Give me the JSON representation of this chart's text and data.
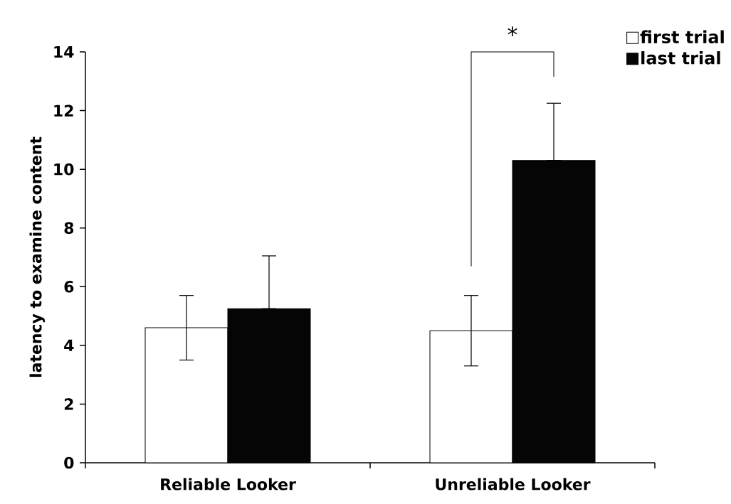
{
  "chart_data": {
    "type": "bar",
    "ylabel": "latency to examine content",
    "categories": [
      "Reliable Looker",
      "Unreliable Looker"
    ],
    "series": [
      {
        "name": "first trial",
        "color": "#ffffff",
        "values": [
          4.6,
          4.5
        ],
        "errors": [
          [
            3.5,
            5.7
          ],
          [
            3.3,
            5.7
          ]
        ]
      },
      {
        "name": "last trial",
        "color": "#050505",
        "values": [
          5.25,
          10.3
        ],
        "errors": [
          [
            5.25,
            7.05
          ],
          [
            10.3,
            12.25
          ]
        ]
      }
    ],
    "ylim": [
      0,
      14
    ],
    "yticks": [
      0,
      2,
      4,
      6,
      8,
      10,
      12,
      14
    ],
    "grid": false,
    "legend": "top right",
    "annotations": [
      "*"
    ]
  }
}
